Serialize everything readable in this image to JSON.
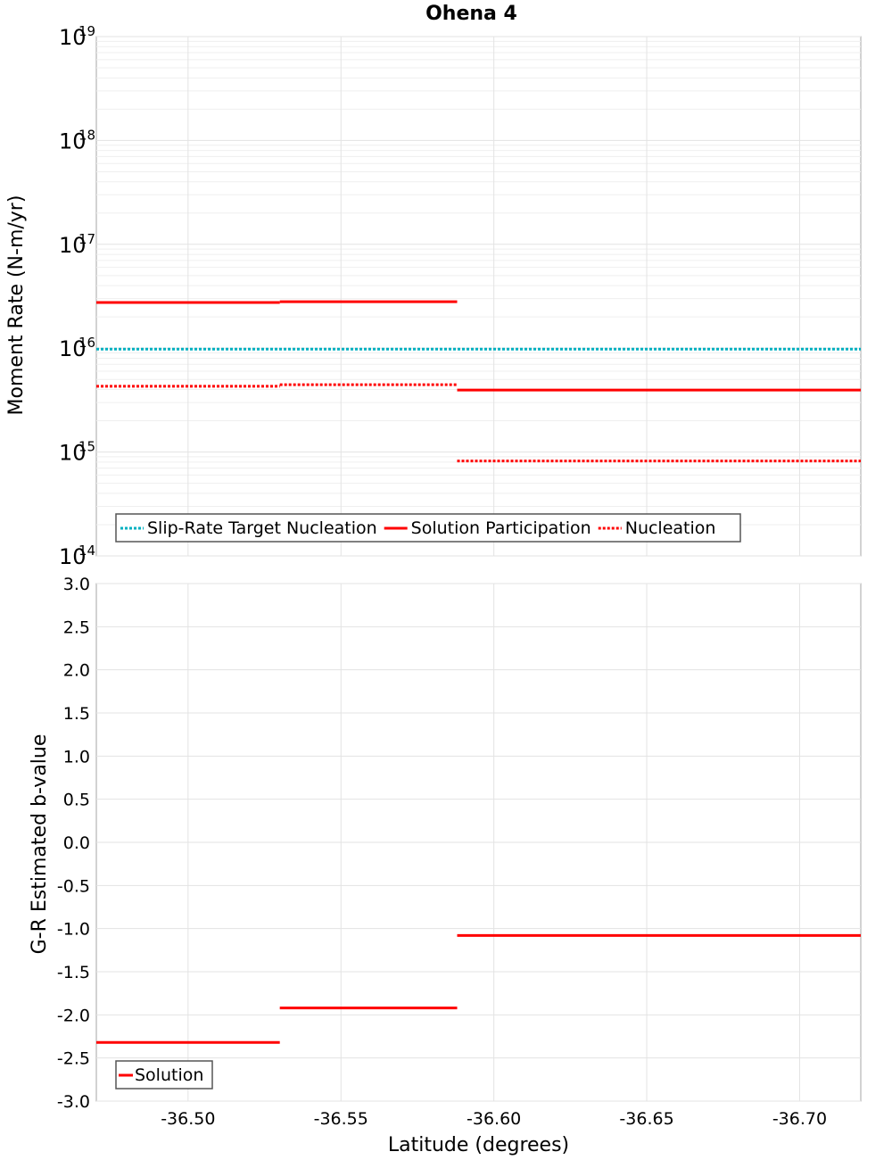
{
  "chart_data": [
    {
      "type": "line",
      "title": "Ohena 4",
      "ylabel": "Moment Rate (N-m/yr)",
      "yscale": "log",
      "ylim": [
        100000000000000.0,
        1e+19
      ],
      "xlim": [
        -36.47,
        -36.72
      ],
      "x_reversed": true,
      "grid": true,
      "y_ticks": [
        {
          "base": "10",
          "exp": "14"
        },
        {
          "base": "10",
          "exp": "15"
        },
        {
          "base": "10",
          "exp": "16"
        },
        {
          "base": "10",
          "exp": "17"
        },
        {
          "base": "10",
          "exp": "18"
        },
        {
          "base": "10",
          "exp": "19"
        }
      ],
      "legend_position": "bottom-left",
      "series": [
        {
          "name": "Slip-Rate Target Nucleation",
          "color": "#00b0c0",
          "style": "dotted",
          "segments": [
            {
              "x": [
                -36.47,
                -36.72
              ],
              "y": 9800000000000000.0
            }
          ]
        },
        {
          "name": "Solution Participation",
          "color": "#ff0000",
          "style": "solid",
          "segments": [
            {
              "x": [
                -36.47,
                -36.53
              ],
              "y": 2.75e+16
            },
            {
              "x": [
                -36.53,
                -36.588
              ],
              "y": 2.8e+16
            },
            {
              "x": [
                -36.588,
                -36.72
              ],
              "y": 3950000000000000.0
            }
          ]
        },
        {
          "name": "Nucleation",
          "color": "#ff0000",
          "style": "dotted",
          "segments": [
            {
              "x": [
                -36.47,
                -36.53
              ],
              "y": 4300000000000000.0
            },
            {
              "x": [
                -36.53,
                -36.588
              ],
              "y": 4450000000000000.0
            },
            {
              "x": [
                -36.588,
                -36.72
              ],
              "y": 820000000000000.0
            }
          ]
        }
      ]
    },
    {
      "type": "line",
      "xlabel": "Latitude (degrees)",
      "ylabel": "G-R Estimated b-value",
      "ylim": [
        -3.0,
        3.0
      ],
      "xlim": [
        -36.47,
        -36.72
      ],
      "x_reversed": true,
      "grid": true,
      "y_ticks": [
        "-3.0",
        "-2.5",
        "-2.0",
        "-1.5",
        "-1.0",
        "-0.5",
        "0.0",
        "0.5",
        "1.0",
        "1.5",
        "2.0",
        "2.5",
        "3.0"
      ],
      "x_ticks": [
        "-36.50",
        "-36.55",
        "-36.60",
        "-36.65",
        "-36.70"
      ],
      "legend_position": "bottom-left",
      "series": [
        {
          "name": "Solution",
          "color": "#ff0000",
          "style": "solid",
          "segments": [
            {
              "x": [
                -36.47,
                -36.53
              ],
              "y": -2.32
            },
            {
              "x": [
                -36.53,
                -36.588
              ],
              "y": -1.92
            },
            {
              "x": [
                -36.588,
                -36.72
              ],
              "y": -1.08
            }
          ]
        }
      ]
    }
  ]
}
